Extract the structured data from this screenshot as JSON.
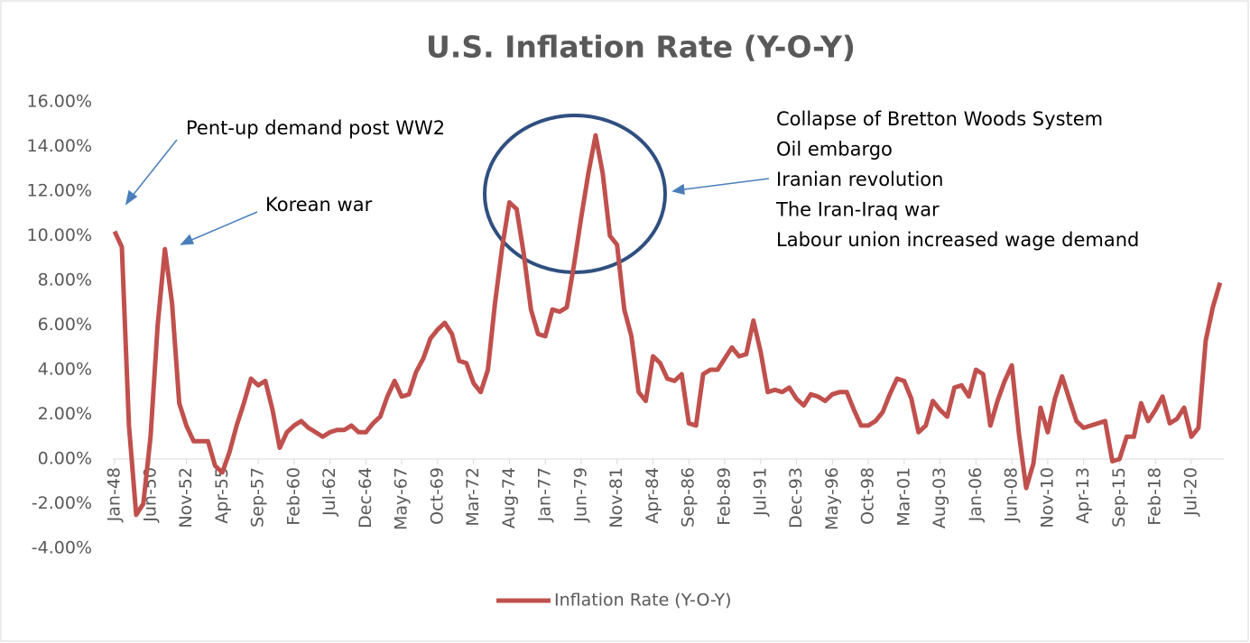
{
  "chart_data": {
    "type": "line",
    "title": "U.S. Inflation Rate (Y-O-Y)",
    "categories": [
      "Jan-48",
      null,
      null,
      null,
      null,
      "Jun-50",
      null,
      null,
      null,
      null,
      "Nov-52",
      null,
      null,
      null,
      null,
      "Apr-55",
      null,
      null,
      null,
      null,
      "Sep-57",
      null,
      null,
      null,
      null,
      "Feb-60",
      null,
      null,
      null,
      null,
      "Jul-62",
      null,
      null,
      null,
      null,
      "Dec-64",
      null,
      null,
      null,
      null,
      "May-67",
      null,
      null,
      null,
      null,
      "Oct-69",
      null,
      null,
      null,
      null,
      "Mar-72",
      null,
      null,
      null,
      null,
      "Aug-74",
      null,
      null,
      null,
      null,
      "Jan-77",
      null,
      null,
      null,
      null,
      "Jun-79",
      null,
      null,
      null,
      null,
      "Nov-81",
      null,
      null,
      null,
      null,
      "Apr-84",
      null,
      null,
      null,
      null,
      "Sep-86",
      null,
      null,
      null,
      null,
      "Feb-89",
      null,
      null,
      null,
      null,
      "Jul-91",
      null,
      null,
      null,
      null,
      "Dec-93",
      null,
      null,
      null,
      null,
      "May-96",
      null,
      null,
      null,
      null,
      "Oct-98",
      null,
      null,
      null,
      null,
      "Mar-01",
      null,
      null,
      null,
      null,
      "Aug-03",
      null,
      null,
      null,
      null,
      "Jan-06",
      null,
      null,
      null,
      null,
      "Jun-08",
      null,
      null,
      null,
      null,
      "Nov-10",
      null,
      null,
      null,
      null,
      "Apr-13",
      null,
      null,
      null,
      null,
      "Sep-15",
      null,
      null,
      null,
      null,
      "Feb-18",
      null,
      null,
      null,
      null,
      "Jul-20",
      null,
      null,
      null,
      null
    ],
    "series": [
      {
        "name": "Inflation Rate (Y-O-Y)",
        "color": "#c0504d",
        "values": [
          10.2,
          9.5,
          1.5,
          -2.5,
          -2.0,
          1.0,
          6.0,
          9.4,
          7.0,
          2.5,
          1.5,
          0.8,
          0.8,
          0.8,
          -0.3,
          -0.6,
          0.3,
          1.5,
          2.5,
          3.6,
          3.3,
          3.5,
          2.2,
          0.5,
          1.2,
          1.5,
          1.7,
          1.4,
          1.2,
          1.0,
          1.2,
          1.3,
          1.3,
          1.5,
          1.2,
          1.2,
          1.6,
          1.9,
          2.8,
          3.5,
          2.8,
          2.9,
          3.9,
          4.5,
          5.4,
          5.8,
          6.1,
          5.6,
          4.4,
          4.3,
          3.4,
          3.0,
          4.0,
          7.0,
          9.5,
          11.5,
          11.2,
          9.2,
          6.7,
          5.6,
          5.5,
          6.7,
          6.6,
          6.8,
          8.7,
          10.8,
          12.8,
          14.5,
          12.8,
          10.0,
          9.6,
          6.7,
          5.5,
          3.0,
          2.6,
          4.6,
          4.3,
          3.6,
          3.5,
          3.8,
          1.6,
          1.5,
          3.8,
          4.0,
          4.0,
          4.5,
          5.0,
          4.6,
          4.7,
          6.2,
          4.8,
          3.0,
          3.1,
          3.0,
          3.2,
          2.7,
          2.4,
          2.9,
          2.8,
          2.6,
          2.9,
          3.0,
          3.0,
          2.2,
          1.5,
          1.5,
          1.7,
          2.1,
          2.9,
          3.6,
          3.5,
          2.7,
          1.2,
          1.5,
          2.6,
          2.2,
          1.9,
          3.2,
          3.3,
          2.8,
          4.0,
          3.8,
          1.5,
          2.6,
          3.5,
          4.2,
          1.1,
          -1.3,
          -0.2,
          2.3,
          1.2,
          2.7,
          3.7,
          2.7,
          1.7,
          1.4,
          1.5,
          1.6,
          1.7,
          -0.1,
          0.0,
          1.0,
          1.0,
          2.5,
          1.7,
          2.2,
          2.8,
          1.6,
          1.8,
          2.3,
          1.0,
          1.4,
          5.3,
          6.8,
          7.9
        ]
      }
    ],
    "ylim": [
      -4,
      16
    ],
    "yticks": [
      {
        "value": -4,
        "label": "-4.00%"
      },
      {
        "value": -2,
        "label": "-2.00%"
      },
      {
        "value": 0,
        "label": "0.00%"
      },
      {
        "value": 2,
        "label": "2.00%"
      },
      {
        "value": 4,
        "label": "4.00%"
      },
      {
        "value": 6,
        "label": "6.00%"
      },
      {
        "value": 8,
        "label": "8.00%"
      },
      {
        "value": 10,
        "label": "10.00%"
      },
      {
        "value": 12,
        "label": "12.00%"
      },
      {
        "value": 14,
        "label": "14.00%"
      },
      {
        "value": 16,
        "label": "16.00%"
      }
    ],
    "annotations": [
      {
        "text": "Pent-up demand post WW2"
      },
      {
        "text": "Korean war"
      },
      {
        "lines": [
          "Collapse of Bretton Woods System",
          "Oil embargo",
          "Iranian revolution",
          "The Iran-Iraq war",
          "Labour union increased wage demand"
        ]
      }
    ],
    "legend": "bottom"
  }
}
